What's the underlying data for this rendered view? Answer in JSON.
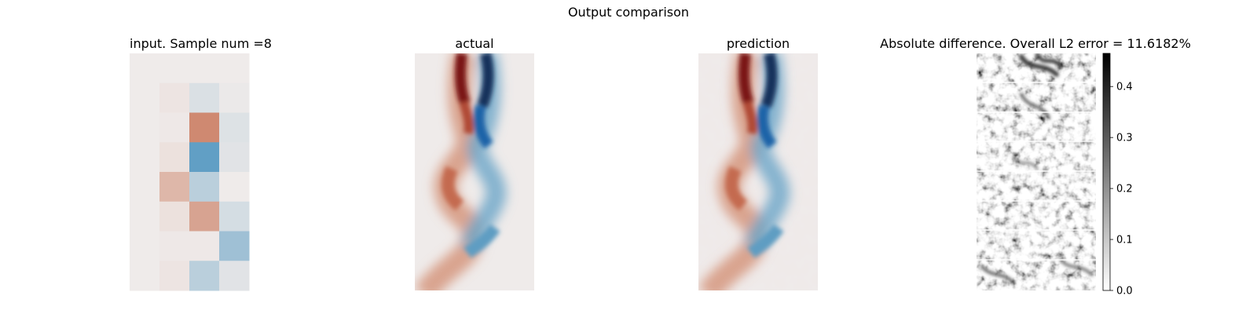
{
  "figure": {
    "title": "Output comparison"
  },
  "panels": {
    "input": {
      "title": "input. Sample num =8"
    },
    "actual": {
      "title": "actual"
    },
    "prediction": {
      "title": "prediction"
    },
    "difference": {
      "title": "Absolute difference. Overall L2 error = 11.6182%"
    }
  },
  "chart_data": [
    {
      "type": "heatmap",
      "title": "input. Sample num =8",
      "rows": 8,
      "cols": 4,
      "colormap": "diverging red-blue",
      "values": [
        [
          0.0,
          0.0,
          0.0,
          0.0
        ],
        [
          0.0,
          0.05,
          -0.12,
          -0.02
        ],
        [
          0.0,
          0.02,
          0.75,
          -0.1
        ],
        [
          0.0,
          0.08,
          -0.8,
          -0.08
        ],
        [
          0.0,
          0.4,
          -0.3,
          0.0
        ],
        [
          0.0,
          0.08,
          0.55,
          -0.15
        ],
        [
          0.0,
          0.02,
          0.02,
          -0.45
        ],
        [
          0.0,
          0.05,
          -0.3,
          -0.08
        ]
      ]
    },
    {
      "type": "heatmap",
      "title": "actual",
      "colormap": "diverging red-blue"
    },
    {
      "type": "heatmap",
      "title": "prediction",
      "colormap": "diverging red-blue"
    },
    {
      "type": "heatmap",
      "title": "Absolute difference. Overall L2 error = 11.6182%",
      "colormap": "grayscale (white = 0, black = max)",
      "colorbar": {
        "ticks": [
          {
            "value": 0.0,
            "label": "0.0"
          },
          {
            "value": 0.1,
            "label": "0.1"
          },
          {
            "value": 0.2,
            "label": "0.2"
          },
          {
            "value": 0.3,
            "label": "0.3"
          },
          {
            "value": 0.4,
            "label": "0.4"
          }
        ],
        "range": [
          0.0,
          0.465
        ]
      }
    }
  ]
}
